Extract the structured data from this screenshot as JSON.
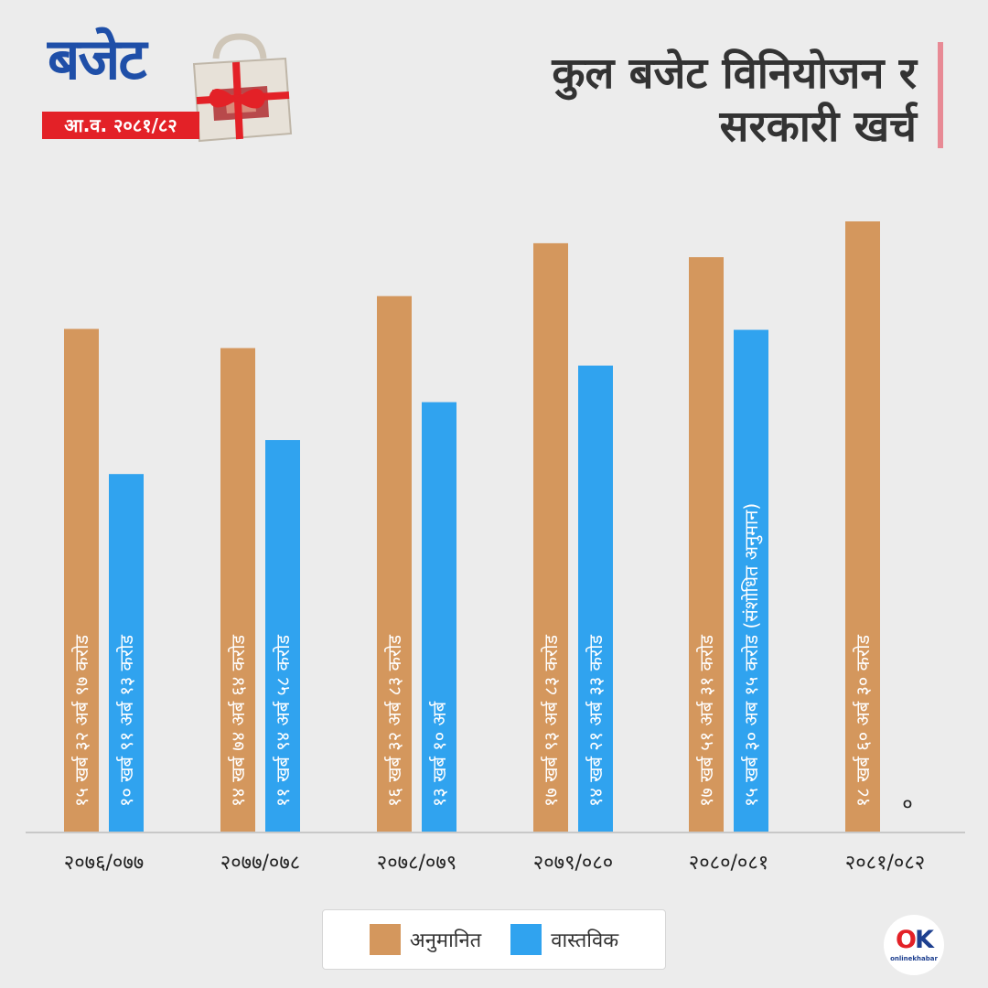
{
  "logo": {
    "word": "बजेट",
    "fiscal_year": "आ.व. २०८१/८२"
  },
  "header": {
    "title_line1": "कुल बजेट विनियोजन र",
    "title_line2": "सरकारी खर्च"
  },
  "colors": {
    "estimated": "#d4975d",
    "actual": "#30a3ef",
    "baseline": "#c8c8c8",
    "label_text": "#ffffff",
    "axis_text": "#222222",
    "title_text": "#333333",
    "accent": "#e88a95"
  },
  "chart_data": {
    "type": "bar",
    "title": "कुल बजेट विनियोजन र सरकारी खर्च",
    "xlabel": "",
    "ylabel": "",
    "grid": false,
    "legend_position": "bottom",
    "categories": [
      "२०७६/०७७",
      "२०७७/०७८",
      "२०७८/०७९",
      "२०७९/०८०",
      "२०८०/०८१",
      "२०८१/०८२"
    ],
    "units": "अर्ब",
    "series": [
      {
        "name": "अनुमानित",
        "values": [
          1532.97,
          1474.64,
          1632.83,
          1793.83,
          1751.31,
          1860.3
        ],
        "labels": [
          "१५ खर्ब ३२ अर्ब ९७ करोड",
          "१४ खर्ब ७४ अर्ब ६४ करोड",
          "१६ खर्ब ३२ अर्ब ८३ करोड",
          "१७ खर्ब ९३ अर्ब ८३ करोड",
          "१७ खर्ब ५१ अर्ब ३१ करोड",
          "१८ खर्ब ६० अर्ब ३० करोड"
        ]
      },
      {
        "name": "वास्तविक",
        "values": [
          1091.13,
          1194.58,
          1310,
          1421.33,
          1530.15,
          0
        ],
        "labels": [
          "१० खर्ब ९१ अर्ब १३ करोड",
          "११ खर्ब ९४ अर्ब ५८ करोड",
          "१३ खर्ब १० अर्ब",
          "१४ खर्ब २१ अर्ब ३३ करोड",
          "१५ खर्ब ३० अब १५ करोड (संशोधित अनुमान)",
          "०"
        ]
      }
    ]
  },
  "legend": {
    "estimated_label": "अनुमानित",
    "actual_label": "वास्तविक"
  },
  "brand": {
    "mark_o": "O",
    "mark_k": "K",
    "name": "onlinekhabar"
  }
}
